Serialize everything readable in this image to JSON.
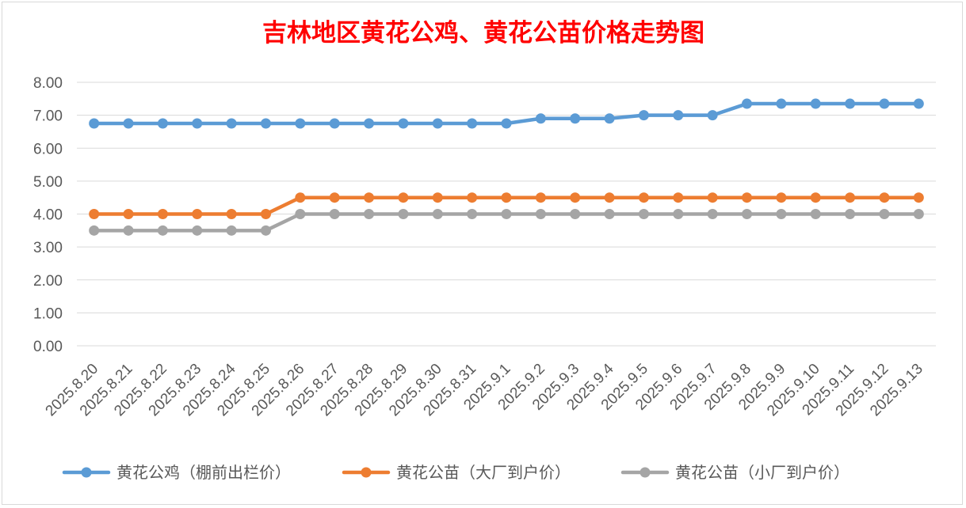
{
  "chart_data": {
    "type": "line",
    "title": "吉林地区黄花公鸡、黄花公苗价格走势图",
    "categories": [
      "2025.8.20",
      "2025.8.21",
      "2025.8.22",
      "2025.8.23",
      "2025.8.24",
      "2025.8.25",
      "2025.8.26",
      "2025.8.27",
      "2025.8.28",
      "2025.8.29",
      "2025.8.30",
      "2025.8.31",
      "2025.9.1",
      "2025.9.2",
      "2025.9.3",
      "2025.9.4",
      "2025.9.5",
      "2025.9.6",
      "2025.9.7",
      "2025.9.8",
      "2025.9.9",
      "2025.9.10",
      "2025.9.11",
      "2025.9.12",
      "2025.9.13"
    ],
    "ylim": [
      0,
      8
    ],
    "yticks": [
      "0.00",
      "1.00",
      "2.00",
      "3.00",
      "4.00",
      "5.00",
      "6.00",
      "7.00",
      "8.00"
    ],
    "grid": true,
    "legend_position": "bottom",
    "series": [
      {
        "name": "黄花公鸡（棚前出栏价）",
        "color": "#5b9bd5",
        "values": [
          6.75,
          6.75,
          6.75,
          6.75,
          6.75,
          6.75,
          6.75,
          6.75,
          6.75,
          6.75,
          6.75,
          6.75,
          6.75,
          6.9,
          6.9,
          6.9,
          7.0,
          7.0,
          7.0,
          7.35,
          7.35,
          7.35,
          7.35,
          7.35,
          7.35
        ]
      },
      {
        "name": "黄花公苗（大厂到户价）",
        "color": "#ed7d31",
        "values": [
          4.0,
          4.0,
          4.0,
          4.0,
          4.0,
          4.0,
          4.5,
          4.5,
          4.5,
          4.5,
          4.5,
          4.5,
          4.5,
          4.5,
          4.5,
          4.5,
          4.5,
          4.5,
          4.5,
          4.5,
          4.5,
          4.5,
          4.5,
          4.5,
          4.5
        ]
      },
      {
        "name": "黄花公苗（小厂到户价）",
        "color": "#a5a5a5",
        "values": [
          3.5,
          3.5,
          3.5,
          3.5,
          3.5,
          3.5,
          4.0,
          4.0,
          4.0,
          4.0,
          4.0,
          4.0,
          4.0,
          4.0,
          4.0,
          4.0,
          4.0,
          4.0,
          4.0,
          4.0,
          4.0,
          4.0,
          4.0,
          4.0,
          4.0
        ]
      }
    ]
  }
}
